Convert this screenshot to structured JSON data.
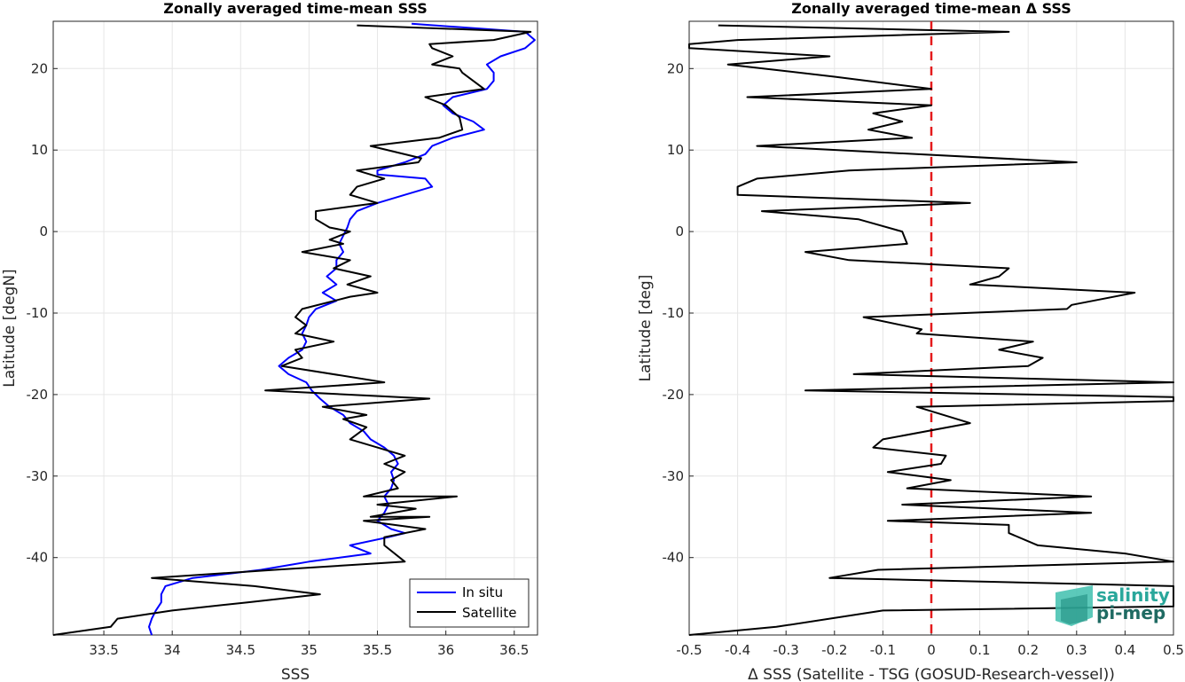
{
  "chart_data": [
    {
      "type": "line",
      "title": "Zonally averaged time-mean SSS",
      "xlabel": "SSS",
      "ylabel": "Latitude [degN]",
      "xlim": [
        33.13,
        36.67
      ],
      "ylim": [
        -49.5,
        25.8
      ],
      "xticks": [
        33.5,
        34,
        34.5,
        35,
        35.5,
        36,
        36.5
      ],
      "xtick_labels": [
        "33.5",
        "34",
        "34.5",
        "35",
        "35.5",
        "36",
        "36.5"
      ],
      "yticks": [
        -40,
        -30,
        -20,
        -10,
        0,
        10,
        20
      ],
      "ytick_labels": [
        "-40",
        "-30",
        "-20",
        "-10",
        "0",
        "10",
        "20"
      ],
      "grid": true,
      "legend_position": "bottom-right",
      "series": [
        {
          "name": "In situ",
          "color": "#0000ff",
          "points": [
            [
              35.75,
              25.5
            ],
            [
              36.58,
              24.5
            ],
            [
              36.65,
              23.5
            ],
            [
              36.58,
              22.5
            ],
            [
              36.4,
              21.5
            ],
            [
              36.3,
              20.5
            ],
            [
              36.35,
              19.5
            ],
            [
              36.35,
              18.5
            ],
            [
              36.3,
              17.5
            ],
            [
              36.05,
              16.5
            ],
            [
              35.98,
              15.5
            ],
            [
              36.05,
              14.5
            ],
            [
              36.2,
              13.5
            ],
            [
              36.28,
              12.5
            ],
            [
              36.05,
              11.5
            ],
            [
              35.9,
              10.5
            ],
            [
              35.85,
              9.5
            ],
            [
              35.7,
              8.5
            ],
            [
              35.5,
              7.5
            ],
            [
              35.5,
              7
            ],
            [
              35.85,
              6.5
            ],
            [
              35.9,
              5.5
            ],
            [
              35.7,
              4.5
            ],
            [
              35.5,
              3.5
            ],
            [
              35.35,
              2.5
            ],
            [
              35.3,
              1.5
            ],
            [
              35.28,
              0.5
            ],
            [
              35.25,
              -0.5
            ],
            [
              35.22,
              -1.5
            ],
            [
              35.25,
              -2.5
            ],
            [
              35.2,
              -3.5
            ],
            [
              35.2,
              -4.5
            ],
            [
              35.13,
              -5.5
            ],
            [
              35.2,
              -6.5
            ],
            [
              35.1,
              -7.5
            ],
            [
              35.2,
              -8.5
            ],
            [
              35.05,
              -9.5
            ],
            [
              35.0,
              -10.5
            ],
            [
              34.98,
              -11.5
            ],
            [
              34.95,
              -12.5
            ],
            [
              34.98,
              -13.5
            ],
            [
              34.95,
              -14.5
            ],
            [
              34.85,
              -15.5
            ],
            [
              34.78,
              -16.5
            ],
            [
              34.85,
              -17.5
            ],
            [
              34.98,
              -18.5
            ],
            [
              35.02,
              -19.5
            ],
            [
              35.08,
              -20.5
            ],
            [
              35.15,
              -21.5
            ],
            [
              35.25,
              -22.5
            ],
            [
              35.3,
              -23.5
            ],
            [
              35.4,
              -24.5
            ],
            [
              35.45,
              -25.5
            ],
            [
              35.55,
              -26.5
            ],
            [
              35.62,
              -27.5
            ],
            [
              35.65,
              -28.5
            ],
            [
              35.6,
              -29.5
            ],
            [
              35.62,
              -30.5
            ],
            [
              35.6,
              -31.5
            ],
            [
              35.55,
              -32.5
            ],
            [
              35.58,
              -33.5
            ],
            [
              35.55,
              -34.5
            ],
            [
              35.5,
              -35.5
            ],
            [
              35.6,
              -36.5
            ],
            [
              35.7,
              -37
            ],
            [
              35.58,
              -37.5
            ],
            [
              35.3,
              -38.5
            ],
            [
              35.45,
              -39.5
            ],
            [
              35.0,
              -40.5
            ],
            [
              34.65,
              -41.5
            ],
            [
              34.15,
              -42.5
            ],
            [
              33.95,
              -43.5
            ],
            [
              33.92,
              -44.5
            ],
            [
              33.92,
              -45.5
            ],
            [
              33.88,
              -46.5
            ],
            [
              33.85,
              -47.5
            ],
            [
              33.83,
              -48.5
            ],
            [
              33.85,
              -49.5
            ]
          ]
        },
        {
          "name": "Satellite",
          "color": "#000000",
          "points": [
            [
              35.35,
              25.3
            ],
            [
              36.62,
              24.5
            ],
            [
              36.35,
              23.5
            ],
            [
              35.88,
              23
            ],
            [
              35.9,
              22.5
            ],
            [
              36.05,
              21.5
            ],
            [
              35.9,
              20.5
            ],
            [
              36.1,
              20
            ],
            [
              36.12,
              19.5
            ],
            [
              36.28,
              17.5
            ],
            [
              35.85,
              16.5
            ],
            [
              36.0,
              15.5
            ],
            [
              36.1,
              14
            ],
            [
              36.12,
              12.5
            ],
            [
              35.95,
              11.5
            ],
            [
              35.45,
              10.5
            ],
            [
              35.82,
              9
            ],
            [
              35.8,
              8.5
            ],
            [
              35.35,
              7.5
            ],
            [
              35.55,
              6.5
            ],
            [
              35.35,
              5.5
            ],
            [
              35.3,
              4.5
            ],
            [
              35.5,
              3.5
            ],
            [
              35.05,
              2.5
            ],
            [
              35.05,
              1.5
            ],
            [
              35.15,
              0.5
            ],
            [
              35.3,
              0
            ],
            [
              35.15,
              -1
            ],
            [
              35.25,
              -1.5
            ],
            [
              34.95,
              -2.5
            ],
            [
              35.3,
              -3.5
            ],
            [
              35.18,
              -4.5
            ],
            [
              35.45,
              -5.5
            ],
            [
              35.28,
              -6.5
            ],
            [
              35.5,
              -7.5
            ],
            [
              35.3,
              -8
            ],
            [
              34.95,
              -9.5
            ],
            [
              34.9,
              -10.5
            ],
            [
              34.98,
              -11.5
            ],
            [
              34.9,
              -12.5
            ],
            [
              35.18,
              -13.5
            ],
            [
              34.9,
              -14.5
            ],
            [
              34.95,
              -15.5
            ],
            [
              34.8,
              -16.5
            ],
            [
              35.55,
              -18.5
            ],
            [
              34.68,
              -19.5
            ],
            [
              35.88,
              -20.5
            ],
            [
              35.1,
              -21.5
            ],
            [
              35.42,
              -22.5
            ],
            [
              35.25,
              -23
            ],
            [
              35.42,
              -24
            ],
            [
              35.3,
              -25.5
            ],
            [
              35.5,
              -26.5
            ],
            [
              35.7,
              -27.5
            ],
            [
              35.55,
              -28.5
            ],
            [
              35.7,
              -29.5
            ],
            [
              35.6,
              -30.5
            ],
            [
              35.65,
              -31.5
            ],
            [
              35.4,
              -32.5
            ],
            [
              36.08,
              -32.5
            ],
            [
              35.5,
              -33.5
            ],
            [
              35.78,
              -34
            ],
            [
              35.45,
              -35
            ],
            [
              35.88,
              -35
            ],
            [
              35.4,
              -35.5
            ],
            [
              35.85,
              -36.5
            ],
            [
              35.55,
              -37.5
            ],
            [
              35.55,
              -38.5
            ],
            [
              35.7,
              -40.5
            ],
            [
              34.75,
              -41.5
            ],
            [
              33.85,
              -42.5
            ],
            [
              34.6,
              -43.5
            ],
            [
              35.08,
              -44.5
            ],
            [
              34.55,
              -45.5
            ],
            [
              34.0,
              -46.5
            ],
            [
              33.6,
              -47.5
            ],
            [
              33.55,
              -48.5
            ],
            [
              33.13,
              -49.5
            ]
          ]
        }
      ]
    },
    {
      "type": "line",
      "title": "Zonally averaged time-mean Δ SSS",
      "xlabel": "Δ SSS (Satellite - TSG (GOSUD-Research-vessel))",
      "ylabel": "Latitude [deg]",
      "xlim": [
        -0.5,
        0.5
      ],
      "ylim": [
        -49.5,
        25.8
      ],
      "xticks": [
        -0.5,
        -0.4,
        -0.3,
        -0.2,
        -0.1,
        0,
        0.1,
        0.2,
        0.3,
        0.4,
        0.5
      ],
      "xtick_labels": [
        "-0.5",
        "-0.4",
        "-0.3",
        "-0.2",
        "-0.1",
        "0",
        "0.1",
        "0.2",
        "0.3",
        "0.4",
        "0.5"
      ],
      "yticks": [
        -40,
        -30,
        -20,
        -10,
        0,
        10,
        20
      ],
      "ytick_labels": [
        "-40",
        "-30",
        "-20",
        "-10",
        "0",
        "10",
        "20"
      ],
      "grid": true,
      "reference_line": {
        "x": 0,
        "color": "#e41a1c",
        "style": "dashed"
      },
      "series": [
        {
          "color": "#000000",
          "points": [
            [
              -0.44,
              25.3
            ],
            [
              0.16,
              24.5
            ],
            [
              -0.4,
              23.5
            ],
            [
              -0.5,
              23
            ],
            [
              -0.5,
              22.5
            ],
            [
              -0.21,
              21.5
            ],
            [
              -0.42,
              20.5
            ],
            [
              -0.2,
              19
            ],
            [
              0.0,
              17.5
            ],
            [
              -0.38,
              16.5
            ],
            [
              0.0,
              15.5
            ],
            [
              -0.12,
              14.5
            ],
            [
              -0.06,
              13.5
            ],
            [
              -0.13,
              12.5
            ],
            [
              -0.04,
              11.5
            ],
            [
              -0.36,
              10.5
            ],
            [
              0.3,
              8.5
            ],
            [
              -0.17,
              7.5
            ],
            [
              -0.36,
              6.5
            ],
            [
              -0.4,
              5.5
            ],
            [
              -0.4,
              4.5
            ],
            [
              0.08,
              3.5
            ],
            [
              -0.35,
              2.5
            ],
            [
              -0.15,
              1.5
            ],
            [
              -0.06,
              0
            ],
            [
              -0.05,
              -1.5
            ],
            [
              -0.26,
              -2.5
            ],
            [
              -0.17,
              -3.5
            ],
            [
              0.16,
              -4.5
            ],
            [
              0.14,
              -5.5
            ],
            [
              0.08,
              -6.5
            ],
            [
              0.42,
              -7.5
            ],
            [
              0.29,
              -9
            ],
            [
              0.28,
              -9.5
            ],
            [
              -0.14,
              -10.5
            ],
            [
              -0.02,
              -12
            ],
            [
              -0.03,
              -12.5
            ],
            [
              0.21,
              -13.5
            ],
            [
              0.14,
              -14.5
            ],
            [
              0.23,
              -15.5
            ],
            [
              0.2,
              -16.5
            ],
            [
              -0.16,
              -17.5
            ],
            [
              0.5,
              -18.5
            ],
            [
              -0.26,
              -19.5
            ],
            [
              0.5,
              -20.3
            ],
            [
              0.5,
              -20.8
            ],
            [
              -0.03,
              -21.5
            ],
            [
              0.08,
              -23.5
            ],
            [
              -0.1,
              -25.5
            ],
            [
              -0.12,
              -26.5
            ],
            [
              0.03,
              -27.5
            ],
            [
              0.02,
              -28.5
            ],
            [
              -0.09,
              -29.5
            ],
            [
              0.04,
              -30.5
            ],
            [
              -0.05,
              -31.5
            ],
            [
              0.33,
              -32.5
            ],
            [
              -0.06,
              -33.5
            ],
            [
              0.33,
              -34.5
            ],
            [
              -0.09,
              -35.5
            ],
            [
              0.16,
              -36
            ],
            [
              0.16,
              -37
            ],
            [
              0.22,
              -38.5
            ],
            [
              0.4,
              -39.5
            ],
            [
              0.5,
              -40.5
            ],
            [
              -0.11,
              -41.5
            ],
            [
              -0.21,
              -42.5
            ],
            [
              0.5,
              -43.5
            ],
            [
              0.5,
              -46
            ],
            [
              -0.1,
              -46.5
            ],
            [
              -0.32,
              -48.5
            ],
            [
              -0.5,
              -49.5
            ]
          ]
        }
      ]
    }
  ],
  "legend": {
    "entries": [
      "In situ",
      "Satellite"
    ]
  },
  "logo": {
    "line1": "salinity",
    "line2": "pi-mep"
  }
}
